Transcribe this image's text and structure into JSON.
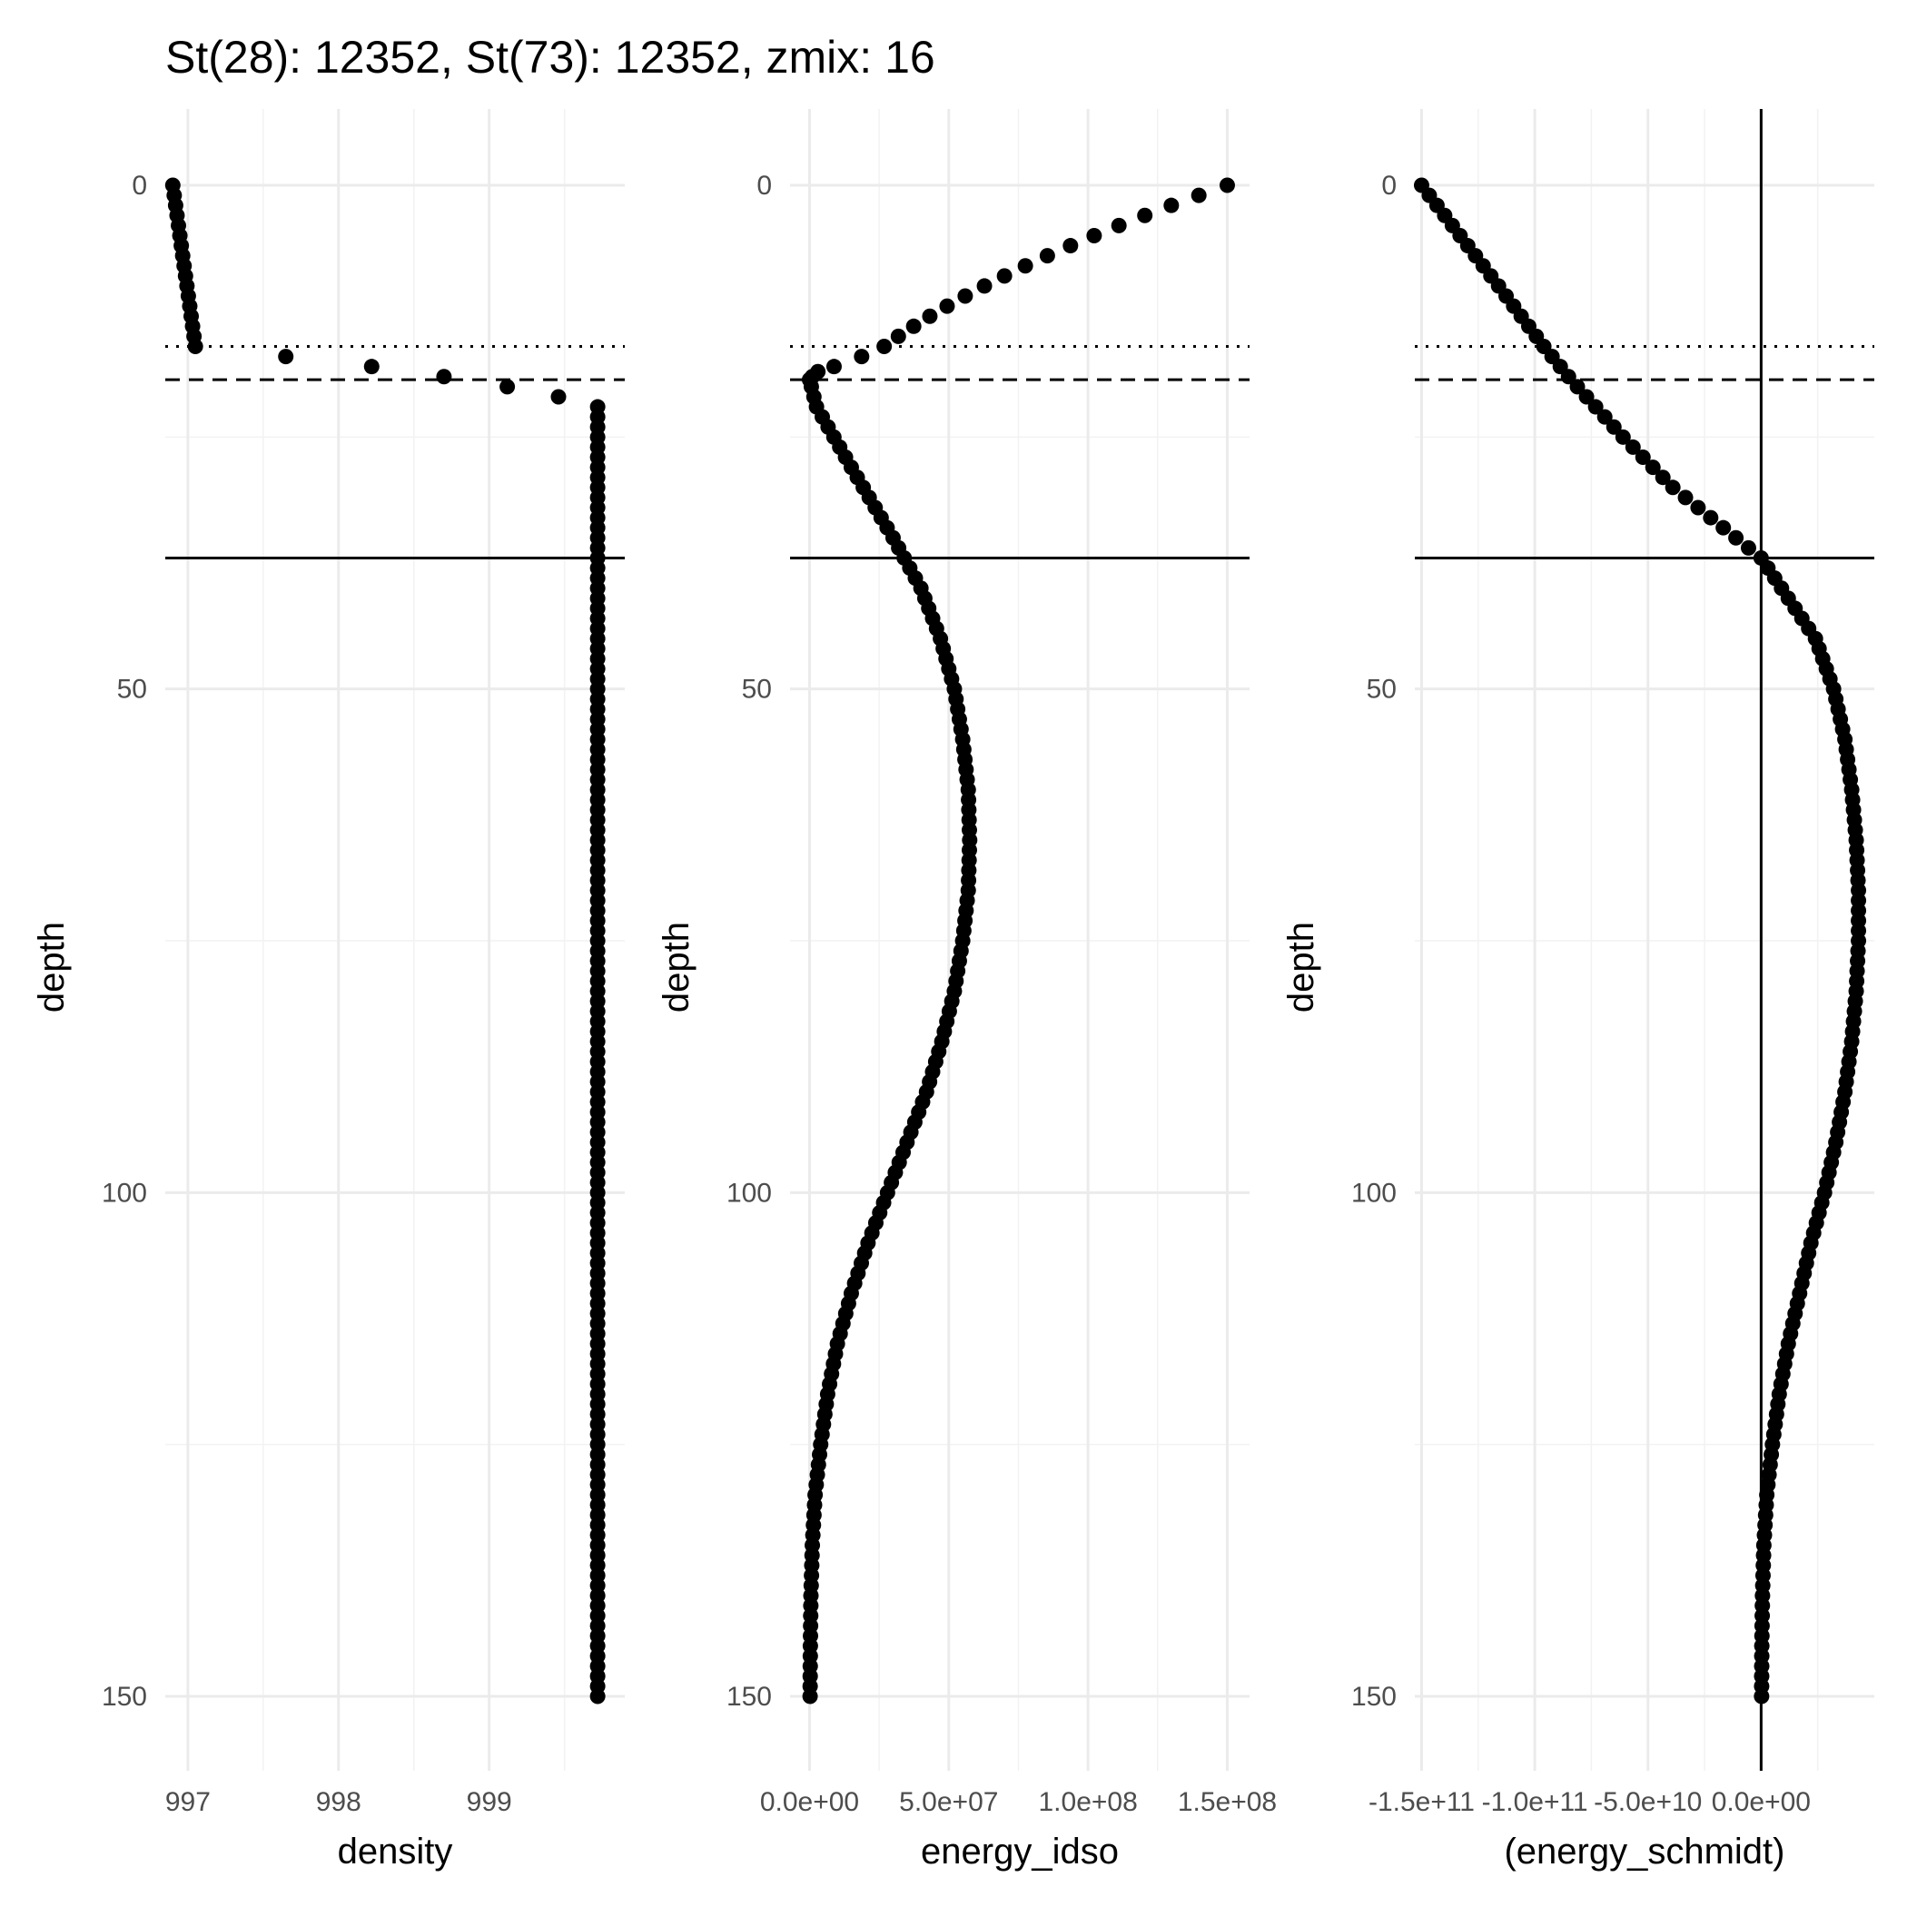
{
  "title": "St(28): 12352, St(73): 12352, zmix: 16",
  "chart_data": [
    {
      "type": "scatter",
      "xlabel": "density",
      "ylabel": "depth",
      "xlim": [
        996.85,
        999.9
      ],
      "ylim": [
        0,
        150
      ],
      "y_reversed": true,
      "x_ticks": [
        "997",
        "998",
        "999"
      ],
      "x_tick_values": [
        997,
        998,
        999
      ],
      "y_ticks": [
        "0",
        "50",
        "100",
        "150"
      ],
      "y_tick_values": [
        0,
        50,
        100,
        150
      ],
      "hlines": [
        {
          "y": 16,
          "style": "dotted"
        },
        {
          "y": 19.3,
          "style": "dashed"
        },
        {
          "y": 37,
          "style": "solid"
        }
      ],
      "vlines": [],
      "profile": {
        "mixed": {
          "from": 0,
          "to": 16,
          "x_from": 996.9,
          "x_to": 997.05
        },
        "points": [
          [
            997.65,
            17
          ],
          [
            998.22,
            18
          ],
          [
            998.7,
            19
          ],
          [
            999.12,
            20
          ],
          [
            999.46,
            21
          ]
        ],
        "deep": {
          "from": 22,
          "to": 150,
          "x": 999.72
        }
      }
    },
    {
      "type": "scatter",
      "xlabel": "energy_idso",
      "ylabel": "depth",
      "xlim": [
        -7000000.0,
        158000000.0
      ],
      "ylim": [
        0,
        150
      ],
      "y_reversed": true,
      "x_ticks": [
        "0.0e+00",
        "5.0e+07",
        "1.0e+08",
        "1.5e+08"
      ],
      "x_tick_values": [
        0,
        50000000,
        100000000,
        150000000
      ],
      "y_ticks": [
        "0",
        "50",
        "100",
        "150"
      ],
      "y_tick_values": [
        0,
        50,
        100,
        150
      ],
      "hlines": [
        {
          "y": 16,
          "style": "dotted"
        },
        {
          "y": 19.3,
          "style": "dashed"
        },
        {
          "y": 37,
          "style": "solid"
        }
      ],
      "vlines": [],
      "profile": {
        "upper": [
          [
            0,
            150000000
          ],
          [
            1,
            139800000
          ],
          [
            2,
            129900000
          ],
          [
            3,
            120400000
          ],
          [
            4,
            111100000
          ],
          [
            5,
            102200000
          ],
          [
            6,
            93700000
          ],
          [
            7,
            85400000
          ],
          [
            8,
            77500000
          ],
          [
            9,
            70000000
          ],
          [
            10,
            62800000
          ],
          [
            11,
            55900000
          ],
          [
            12,
            49400000
          ],
          [
            13,
            43200000
          ],
          [
            14,
            37400000
          ],
          [
            15,
            31900000
          ],
          [
            16,
            26800000
          ],
          [
            17,
            18700000
          ],
          [
            18,
            8800000
          ],
          [
            18.5,
            3000000
          ],
          [
            19,
            1000000
          ],
          [
            19.3,
            0
          ]
        ],
        "lower_knots": [
          [
            19.3,
            0
          ],
          [
            22,
            2500000
          ],
          [
            28,
            15000000
          ],
          [
            35,
            30000000
          ],
          [
            40,
            40000000
          ],
          [
            45,
            47000000
          ],
          [
            50,
            52000000
          ],
          [
            55,
            55000000
          ],
          [
            60,
            57000000
          ],
          [
            65,
            57500000
          ],
          [
            70,
            57000000
          ],
          [
            75,
            55000000
          ],
          [
            80,
            52000000
          ],
          [
            85,
            47500000
          ],
          [
            90,
            42000000
          ],
          [
            95,
            35000000
          ],
          [
            100,
            28000000
          ],
          [
            105,
            21000000
          ],
          [
            110,
            15000000
          ],
          [
            115,
            10000000
          ],
          [
            120,
            6500000
          ],
          [
            125,
            4000000
          ],
          [
            130,
            2000000
          ],
          [
            135,
            1000000
          ],
          [
            140,
            500000
          ],
          [
            145,
            300000
          ],
          [
            150,
            200000
          ]
        ]
      }
    },
    {
      "type": "scatter",
      "xlabel": "(energy_schmidt)",
      "ylabel": "depth",
      "xlim": [
        -153000000000.0,
        50000000000.0
      ],
      "ylim": [
        0,
        150
      ],
      "y_reversed": true,
      "x_ticks": [
        "-1.5e+11",
        "-1.0e+11",
        "-5.0e+10",
        "0.0e+00"
      ],
      "x_tick_values": [
        -150000000000,
        -100000000000,
        -50000000000,
        0
      ],
      "y_ticks": [
        "0",
        "50",
        "100",
        "150"
      ],
      "y_tick_values": [
        0,
        50,
        100,
        150
      ],
      "hlines": [
        {
          "y": 16,
          "style": "dotted"
        },
        {
          "y": 19.3,
          "style": "dashed"
        },
        {
          "y": 37,
          "style": "solid"
        }
      ],
      "vlines": [
        {
          "x": 0,
          "style": "solid"
        }
      ],
      "profile": {
        "knots": [
          [
            0,
            -150000000000
          ],
          [
            5,
            -133000000000
          ],
          [
            10,
            -116000000000
          ],
          [
            16,
            -96000000000
          ],
          [
            19.3,
            -84000000000
          ],
          [
            25,
            -61000000000
          ],
          [
            30,
            -39000000000
          ],
          [
            37,
            0
          ],
          [
            45,
            24000000000
          ],
          [
            50,
            32000000000
          ],
          [
            55,
            37000000000
          ],
          [
            60,
            40000000000
          ],
          [
            65,
            42000000000
          ],
          [
            70,
            43000000000
          ],
          [
            75,
            43000000000
          ],
          [
            80,
            42000000000
          ],
          [
            85,
            40000000000
          ],
          [
            90,
            37000000000
          ],
          [
            95,
            33000000000
          ],
          [
            100,
            28000000000
          ],
          [
            105,
            22000000000
          ],
          [
            110,
            17000000000
          ],
          [
            115,
            12000000000
          ],
          [
            120,
            8000000000
          ],
          [
            125,
            5000000000
          ],
          [
            130,
            2500000000
          ],
          [
            135,
            1200000000
          ],
          [
            140,
            600000000
          ],
          [
            145,
            300000000
          ],
          [
            150,
            200000000
          ]
        ]
      }
    }
  ]
}
